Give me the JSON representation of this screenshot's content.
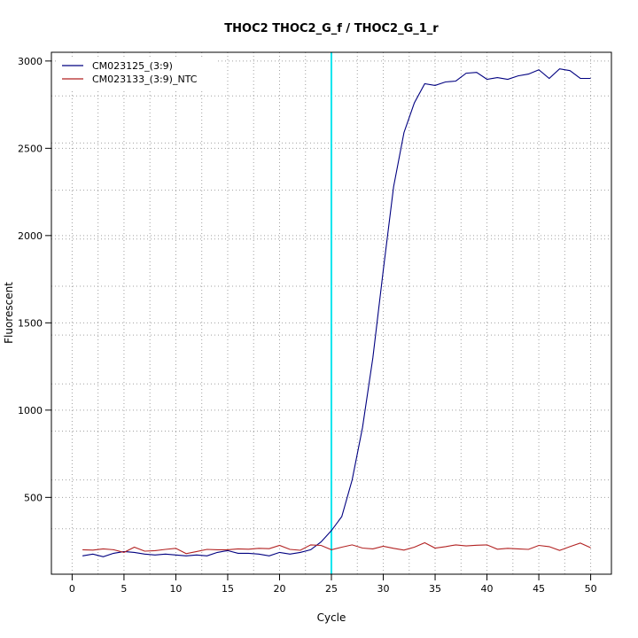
{
  "chart_data": {
    "type": "line",
    "title": "THOC2  THOC2_G_f / THOC2_G_1_r",
    "xlabel": "Cycle",
    "ylabel": "Fluorescent",
    "xlim": [
      -2,
      52
    ],
    "ylim": [
      60,
      3050
    ],
    "x_ticks": [
      0,
      5,
      10,
      15,
      20,
      25,
      30,
      35,
      40,
      45,
      50
    ],
    "y_ticks": [
      500,
      1000,
      1500,
      2000,
      2500,
      3000
    ],
    "x_grid": [
      2.5,
      7.5,
      12.5,
      17.5,
      22.5,
      27.5,
      32.5,
      37.5,
      42.5,
      47.5
    ],
    "y_grid": [
      320,
      600,
      880,
      1150,
      1430,
      1710,
      1980,
      2260,
      2530,
      2800
    ],
    "grid": true,
    "legend_position": "top-left",
    "threshold_line": {
      "x": 25,
      "color": "#00e5ee"
    },
    "x": [
      1,
      2,
      3,
      4,
      5,
      6,
      7,
      8,
      9,
      10,
      11,
      12,
      13,
      14,
      15,
      16,
      17,
      18,
      19,
      20,
      21,
      22,
      23,
      24,
      25,
      26,
      27,
      28,
      29,
      30,
      31,
      32,
      33,
      34,
      35,
      36,
      37,
      38,
      39,
      40,
      41,
      42,
      43,
      44,
      45,
      46,
      47,
      48,
      49,
      50
    ],
    "series": [
      {
        "name": "CM023125_(3:9)",
        "color": "#000080",
        "values": [
          165,
          175,
          160,
          180,
          190,
          185,
          175,
          170,
          175,
          170,
          165,
          170,
          165,
          185,
          195,
          180,
          180,
          175,
          165,
          185,
          175,
          185,
          200,
          245,
          310,
          390,
          600,
          900,
          1300,
          1800,
          2280,
          2590,
          2760,
          2870,
          2860,
          2880,
          2885,
          2930,
          2935,
          2895,
          2905,
          2895,
          2915,
          2925,
          2950,
          2900,
          2955,
          2945,
          2900,
          2900
        ]
      },
      {
        "name": "CM023133_(3:9)_NTC",
        "color": "#b22222",
        "values": [
          200,
          198,
          205,
          200,
          185,
          215,
          192,
          195,
          202,
          208,
          178,
          190,
          202,
          200,
          200,
          205,
          203,
          208,
          206,
          225,
          202,
          197,
          228,
          225,
          200,
          215,
          228,
          210,
          205,
          220,
          208,
          198,
          215,
          240,
          210,
          218,
          228,
          222,
          226,
          228,
          203,
          208,
          205,
          202,
          225,
          218,
          196,
          218,
          238,
          212
        ]
      }
    ]
  }
}
